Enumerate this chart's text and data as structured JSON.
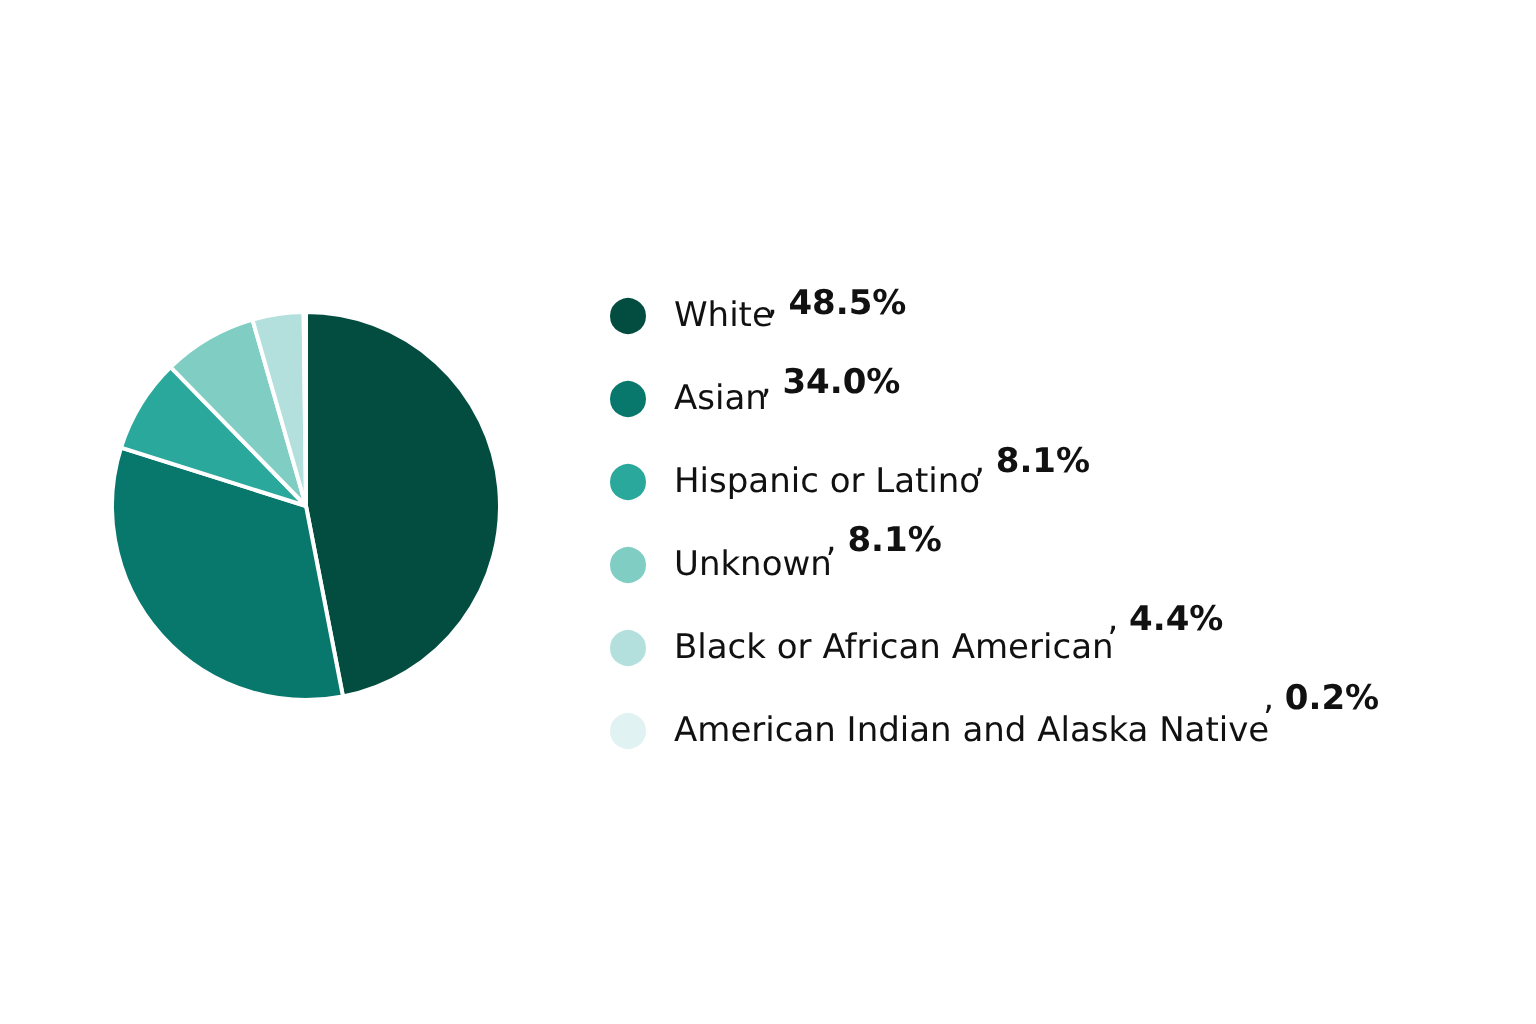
{
  "chart_data": {
    "type": "pie",
    "categories": [
      "White",
      "Asian",
      "Hispanic or Latino",
      "Unknown",
      "Black or African American",
      "American Indian and Alaska Native"
    ],
    "values": [
      48.5,
      34.0,
      8.1,
      8.1,
      4.4,
      0.2
    ],
    "value_labels": [
      ", 48.5%",
      ", 34.0%",
      ", 8.1%",
      ", 8.1%",
      ", 4.4%",
      ", 0.2%"
    ],
    "colors": [
      "#034d40",
      "#08786c",
      "#2ba89c",
      "#7fcdc3",
      "#b3e0dc",
      "#e0f2f1"
    ],
    "legend": "right"
  }
}
